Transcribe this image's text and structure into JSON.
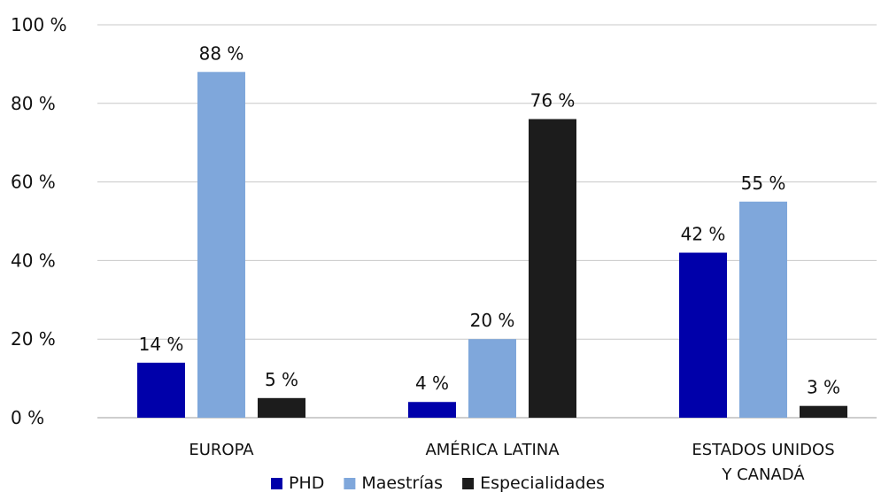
{
  "chart_data": {
    "type": "bar",
    "title": "",
    "xlabel": "",
    "ylabel": "",
    "categories": [
      [
        "EUROPA"
      ],
      [
        "AMÉRICA LATINA"
      ],
      [
        "ESTADOS UNIDOS",
        "Y CANADÁ"
      ]
    ],
    "ylim": [
      0,
      100
    ],
    "yticks": [
      0,
      20,
      40,
      60,
      80,
      100
    ],
    "ytick_labels": [
      "0 %",
      "20 %",
      "40 %",
      "60 %",
      "80 %",
      "100 %"
    ],
    "grid": true,
    "legend_position": "bottom",
    "series": [
      {
        "name": "PHD",
        "color": "#0000AA",
        "values": [
          14,
          4,
          42
        ],
        "labels": [
          "14 %",
          "4 %",
          "42 %"
        ]
      },
      {
        "name": "Maestrías",
        "color": "#7FA7DB",
        "values": [
          88,
          20,
          55
        ],
        "labels": [
          "88 %",
          "20 %",
          "55 %"
        ]
      },
      {
        "name": "Especialidades",
        "color": "#1C1C1C",
        "values": [
          5,
          76,
          3
        ],
        "labels": [
          "5 %",
          "76 %",
          "3 %"
        ]
      }
    ]
  }
}
